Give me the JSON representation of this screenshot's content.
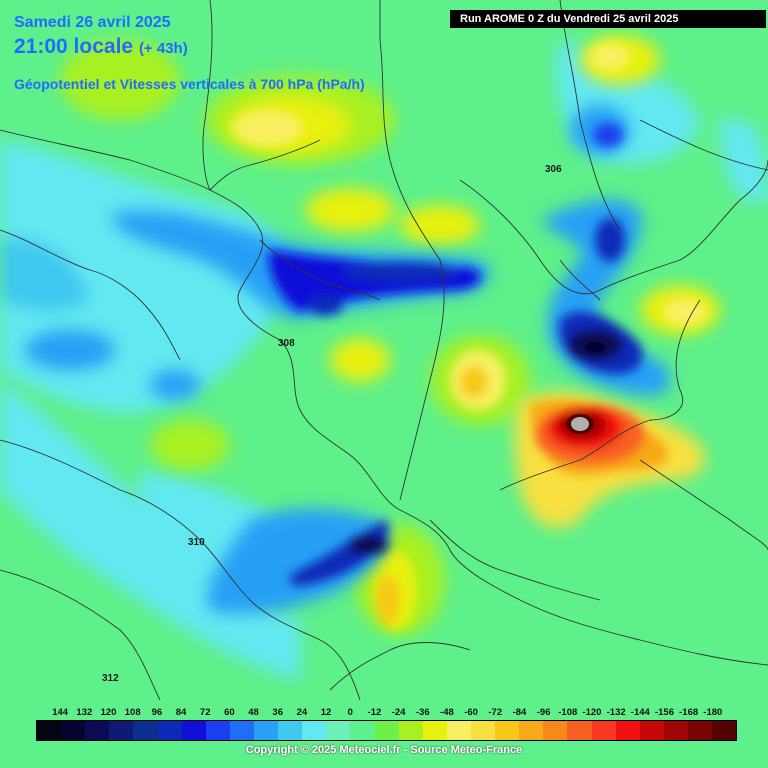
{
  "header": {
    "date_line": "Samedi 26 avril 2025",
    "time_line": "21:00 locale",
    "time_offset": "(+ 43h)",
    "parameter_line": "Géopotentiel et Vitesses verticales à 700 hPa (hPa/h)"
  },
  "run_info": "Run AROME 0 Z du Vendredi 25 avril 2025",
  "geopotential_labels": [
    "306",
    "308",
    "310",
    "312"
  ],
  "scale": {
    "labels": [
      "144",
      "132",
      "120",
      "108",
      "96",
      "84",
      "72",
      "60",
      "48",
      "36",
      "24",
      "12",
      "0",
      "-12",
      "-24",
      "-36",
      "-48",
      "-60",
      "-72",
      "-84",
      "-96",
      "-108",
      "-120",
      "-132",
      "-144",
      "-156",
      "-168",
      "-180"
    ],
    "colors": [
      "#040412",
      "#050530",
      "#0a0a55",
      "#0f1a75",
      "#0b2f8a",
      "#0a2ab8",
      "#1010d8",
      "#1a3ff0",
      "#1f6ef5",
      "#27a0f5",
      "#3fc8f0",
      "#62e8f0",
      "#6af0b8",
      "#5ef08a",
      "#6ef04a",
      "#a8f020",
      "#e8f010",
      "#f8f060",
      "#f8e040",
      "#f8c818",
      "#f8a818",
      "#f88818",
      "#f86020",
      "#f83820",
      "#f01010",
      "#c80808",
      "#a00606",
      "#780404",
      "#540202"
    ]
  },
  "copyright": "Copyright © 2025 Meteociel.fr - Source Meteo-France"
}
